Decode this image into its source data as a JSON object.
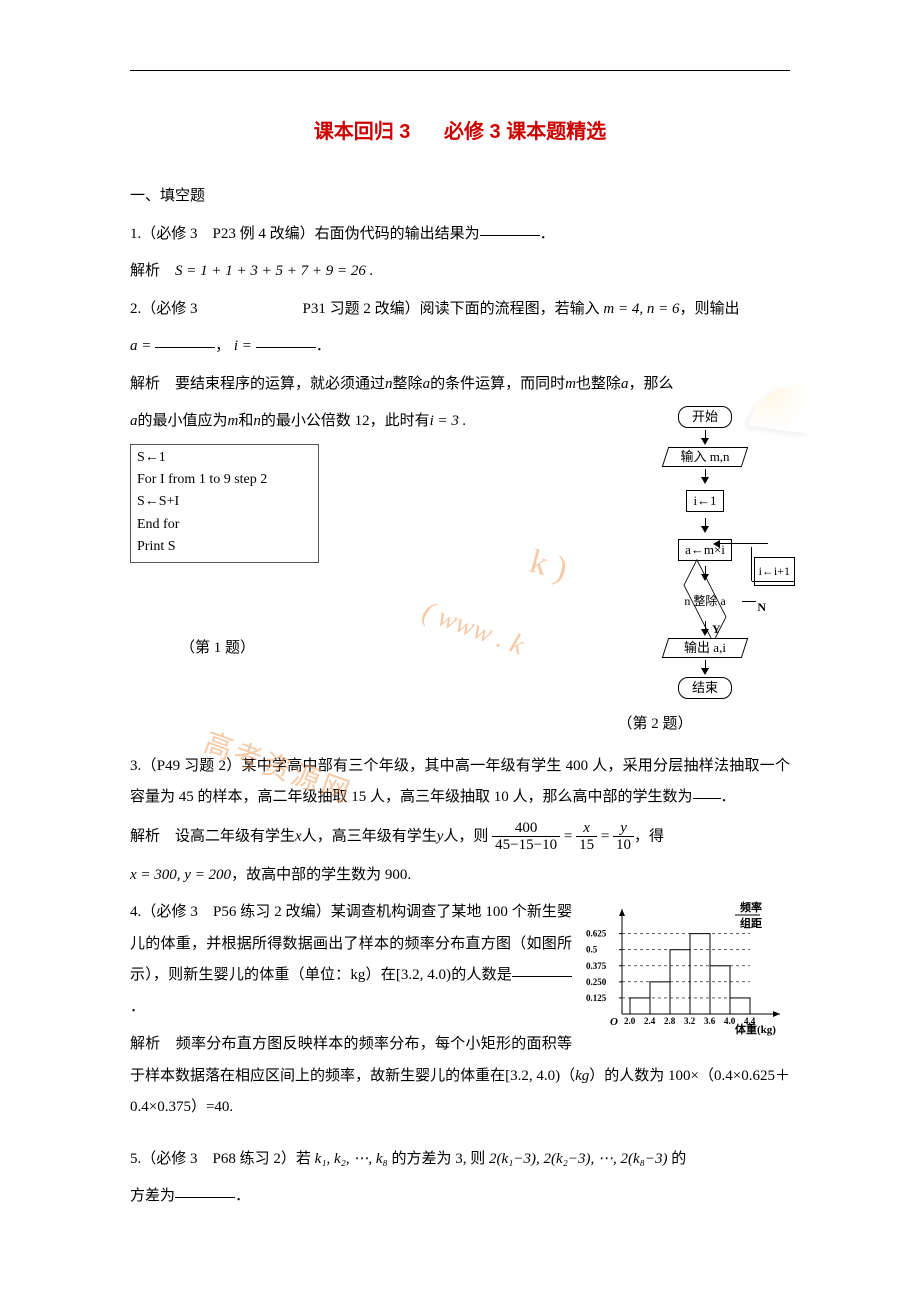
{
  "document": {
    "title_prefix": "课本回归 3",
    "title_label": "必修 3 课本题精选",
    "section_heading": "一、填空题",
    "text_color": "#000000",
    "accent_color": "#cc0000",
    "page_bg": "#ffffff"
  },
  "q1": {
    "problem": "1.（必修 3　P23 例 4 改编）右面伪代码的输出结果为",
    "suffix": "．",
    "solution_label": "解析",
    "solution_text": "S = 1 + 1 + 3 + 5 + 7 + 9 = 26 .",
    "pseudo": {
      "l1": "S←1",
      "l2": "For I from 1 to 9 step 2",
      "l3": "S←S+I",
      "l4": "End for",
      "l5": "Print S"
    },
    "caption": "（第 1 题）"
  },
  "q2": {
    "problem_a": "2.（必修 3",
    "problem_aspace": "　　　　　　　",
    "problem_b": "P31 习题 2 改编）阅读下面的流程图，若输入",
    "problem_math": "m = 4, n = 6",
    "problem_c": "，则输出",
    "answer_a_label": "a =",
    "answer_i_label": "i =",
    "comma": "，",
    "period": "．",
    "solution_label": "解析",
    "solution_p1a": "要结束程序的运算，就必须通过",
    "solution_p1b": "整除",
    "solution_p1c": "的条件运算，而同时",
    "solution_p1d": "也整除",
    "solution_p1e": "，那么",
    "solution_p2a": "的最小值应为",
    "solution_p2b": "和",
    "solution_p2c": "的最小公倍数 12，此时有",
    "solution_p2d": "i = 3 .",
    "caption": "（第 2 题）",
    "flowchart": {
      "start": "开始",
      "input": "输入 m,n",
      "init": "i←1",
      "assign": "a←m×i",
      "cond": "n 整除 a",
      "inc": "i←i+1",
      "yes": "Y",
      "no": "N",
      "output": "输出 a,i",
      "end": "结束"
    }
  },
  "q3": {
    "problem_a": "3.（P49 习题 2）某中学高中部有三个年级，其中高一年级有学生 400 人，采用分层抽样法抽取一个容量为 45 的样本，高二年级抽取 15 人，高三年级抽取 10 人，那么高中部的学生数为",
    "suffix": "．",
    "solution_label": "解析",
    "sol_a": "设高二年级有学生",
    "sol_b": "人，高三年级有学生",
    "sol_c": "人，则",
    "sol_d": "，得",
    "sol_e": "，故高中部的学生数为 900.",
    "frac1_num": "400",
    "frac1_den": "45−15−10",
    "frac2_num": "x",
    "frac2_den": "15",
    "frac3_num": "y",
    "frac3_den": "10",
    "result": "x = 300, y = 200"
  },
  "q4": {
    "problem_a": "4.（必修 3　P56 练习 2 改编）某调查机构调查了某地 100 个新生婴儿的体重，并根据所得数据画出了样本的频率分布直方图（如图所示），则新生婴儿的体重（单位：kg）在[3.2, 4.0)的人数是",
    "suffix": "．",
    "solution_label": "解析",
    "sol_a": "频率分布直方图反映样本的频率分布，每个小矩形的面积等于样本数据落在相应区间上的频率，故新生婴儿的体重在[3.2, 4.0)（",
    "kg_italic": "kg",
    "sol_b": "）的人数为 100×（0.4×0.625＋0.4×0.375）=40.",
    "histogram": {
      "type": "histogram",
      "y_label_top": "频率",
      "y_label_bot": "组距",
      "x_label": "体重(kg)",
      "origin": "O",
      "y_ticks": [
        "0.125",
        "0.250",
        "0.375",
        "0.5",
        "0.625"
      ],
      "x_ticks": [
        "2.0",
        "2.4",
        "2.8",
        "3.2",
        "3.6",
        "4.0",
        "4.4"
      ],
      "bar_heights": [
        0.125,
        0.25,
        0.5,
        0.625,
        0.375,
        0.125
      ],
      "bar_width_units": 0.4,
      "xlim": [
        2.0,
        4.4
      ],
      "ylim": [
        0,
        0.7
      ],
      "axis_color": "#000000",
      "bar_fill": "#ffffff",
      "bar_border": "#000000",
      "grid_dash": "3,3",
      "grid_color": "#000000",
      "font_size_labels": 10,
      "font_size_axis_title": 12
    }
  },
  "q5": {
    "problem_a": "5.（必修 3　P68 练习 2）若",
    "seq1": "k₁, k₂, ⋯, k₈",
    "problem_b": "的方差为 3, 则",
    "seq2": "2(k₁−3), 2(k₂−3), ⋯, 2(k₈−3)",
    "problem_c": "的",
    "line2": "方差为",
    "suffix": "．"
  },
  "watermark": {
    "url": "( www . k",
    "brand": "高考资源网"
  }
}
